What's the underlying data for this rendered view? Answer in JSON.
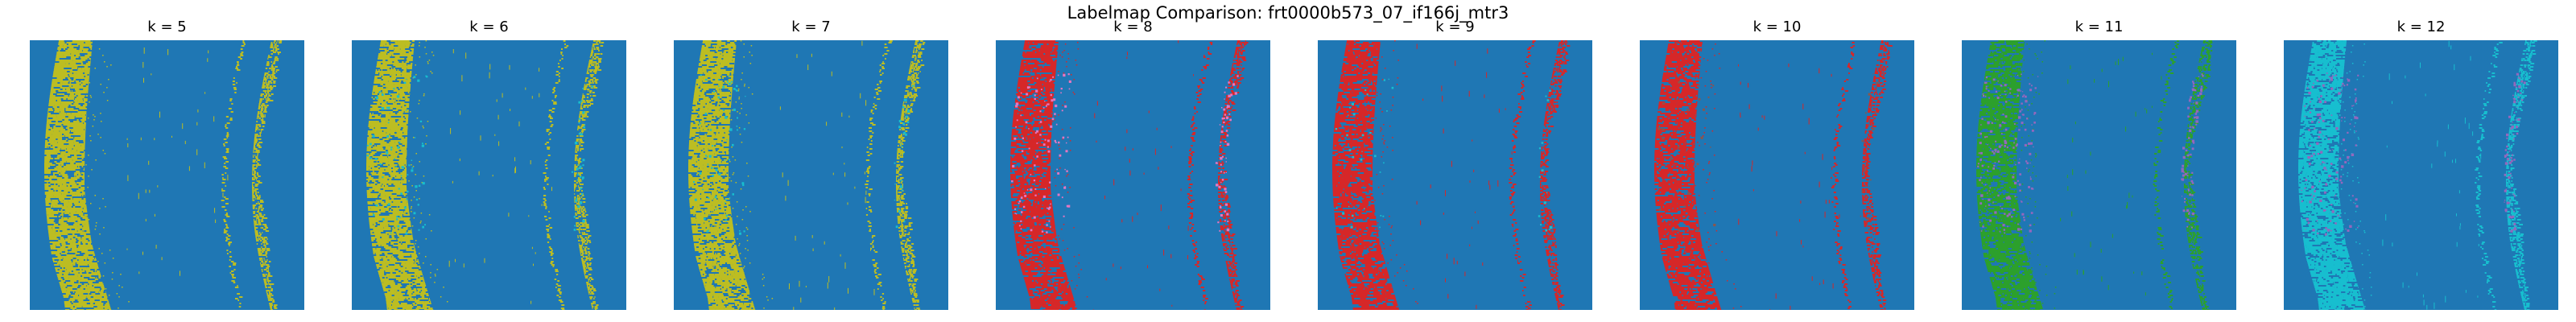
{
  "figure": {
    "title": "Labelmap Comparison: frt0000b573_07_if166j_mtr3"
  },
  "panels": [
    {
      "title": "k = 5",
      "background_color": "#1f77b4",
      "layers": [
        {
          "color": "#bcbd22",
          "density": 1.0
        }
      ]
    },
    {
      "title": "k = 6",
      "background_color": "#1f77b4",
      "layers": [
        {
          "color": "#bcbd22",
          "density": 1.0
        },
        {
          "color": "#17becf",
          "density": 0.05
        }
      ]
    },
    {
      "title": "k = 7",
      "background_color": "#1f77b4",
      "layers": [
        {
          "color": "#bcbd22",
          "density": 1.0
        },
        {
          "color": "#17becf",
          "density": 0.04
        }
      ]
    },
    {
      "title": "k = 8",
      "background_color": "#1f77b4",
      "layers": [
        {
          "color": "#d62728",
          "density": 1.0
        },
        {
          "color": "#e377c2",
          "density": 0.08
        }
      ]
    },
    {
      "title": "k = 9",
      "background_color": "#1f77b4",
      "layers": [
        {
          "color": "#d62728",
          "density": 1.0
        },
        {
          "color": "#17becf",
          "density": 0.02
        }
      ]
    },
    {
      "title": "k = 10",
      "background_color": "#1f77b4",
      "layers": [
        {
          "color": "#d62728",
          "density": 1.0
        },
        {
          "color": "#8c564b",
          "density": 0.02
        }
      ]
    },
    {
      "title": "k = 11",
      "background_color": "#1f77b4",
      "layers": [
        {
          "color": "#2ca02c",
          "density": 1.0
        },
        {
          "color": "#9467bd",
          "density": 0.12
        }
      ]
    },
    {
      "title": "k = 12",
      "background_color": "#1f77b4",
      "layers": [
        {
          "color": "#17becf",
          "density": 1.0
        },
        {
          "color": "#9467bd",
          "density": 0.1
        }
      ]
    }
  ]
}
